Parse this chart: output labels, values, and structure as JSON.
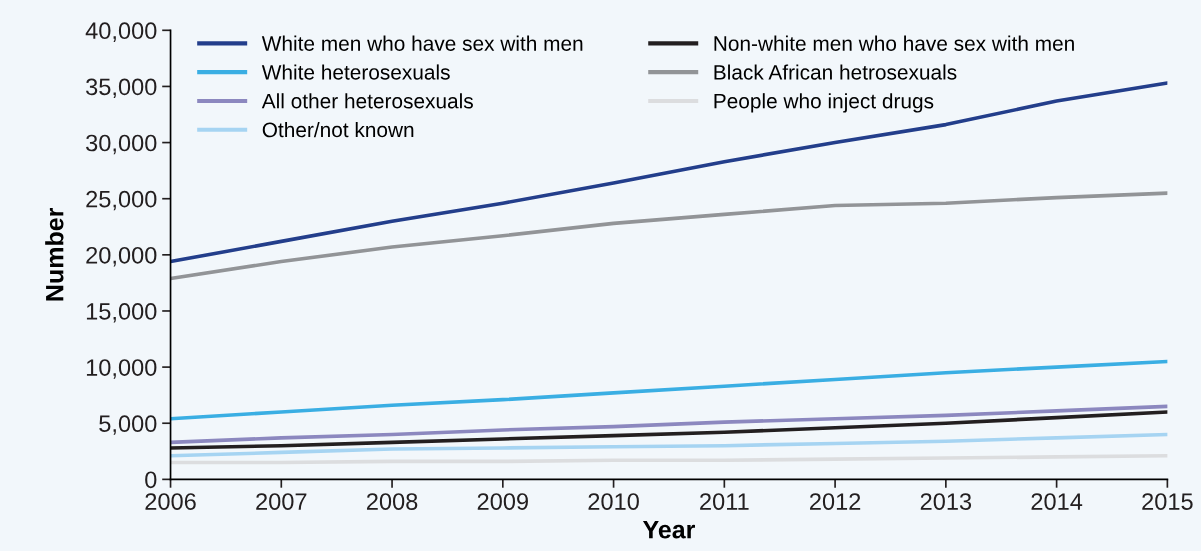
{
  "chart_data": {
    "type": "line",
    "xlabel": "Year",
    "ylabel": "Number",
    "x": [
      2006,
      2007,
      2008,
      2009,
      2010,
      2011,
      2012,
      2013,
      2014,
      2015
    ],
    "xlim": [
      2006,
      2015
    ],
    "xticks": [
      2006,
      2007,
      2008,
      2009,
      2010,
      2011,
      2012,
      2013,
      2014,
      2015
    ],
    "ylim": [
      0,
      40000
    ],
    "yticks": [
      {
        "value": 0,
        "label": "0"
      },
      {
        "value": 5000,
        "label": "5,000"
      },
      {
        "value": 10000,
        "label": "10,000"
      },
      {
        "value": 15000,
        "label": "15,000"
      },
      {
        "value": 20000,
        "label": "20,000"
      },
      {
        "value": 25000,
        "label": "25,000"
      },
      {
        "value": 30000,
        "label": "30,000"
      },
      {
        "value": 35000,
        "label": "35,000"
      },
      {
        "value": 40000,
        "label": "40,000"
      }
    ],
    "grid": false,
    "legend": "top left",
    "marker": "none",
    "line_style": "solid",
    "series": [
      {
        "name": "White men who have sex with men",
        "color": "#233e8b",
        "values": [
          19400,
          21200,
          23000,
          24600,
          26400,
          28300,
          30000,
          31600,
          33700,
          35300
        ]
      },
      {
        "name": "White heterosexuals",
        "color": "#3aaee3",
        "values": [
          5400,
          6000,
          6600,
          7100,
          7700,
          8300,
          8900,
          9500,
          10000,
          10500
        ]
      },
      {
        "name": "All other heterosexuals",
        "color": "#8c88bf",
        "values": [
          3300,
          3700,
          4000,
          4400,
          4700,
          5100,
          5400,
          5700,
          6100,
          6500
        ]
      },
      {
        "name": "Other/not known",
        "color": "#a6d4f2",
        "values": [
          2100,
          2400,
          2700,
          2800,
          2900,
          3000,
          3200,
          3400,
          3700,
          4000
        ]
      },
      {
        "name": "Non-white men who have sex with men",
        "color": "#231f20",
        "values": [
          2800,
          3000,
          3300,
          3600,
          3900,
          4200,
          4600,
          5000,
          5500,
          6000
        ]
      },
      {
        "name": "Black African hetrosexuals",
        "color": "#929497",
        "values": [
          17900,
          19400,
          20700,
          21700,
          22800,
          23600,
          24400,
          24600,
          25100,
          25500
        ]
      },
      {
        "name": "People who inject drugs",
        "color": "#dcdddf",
        "values": [
          1500,
          1500,
          1600,
          1600,
          1700,
          1700,
          1800,
          1900,
          2000,
          2100
        ]
      }
    ]
  }
}
